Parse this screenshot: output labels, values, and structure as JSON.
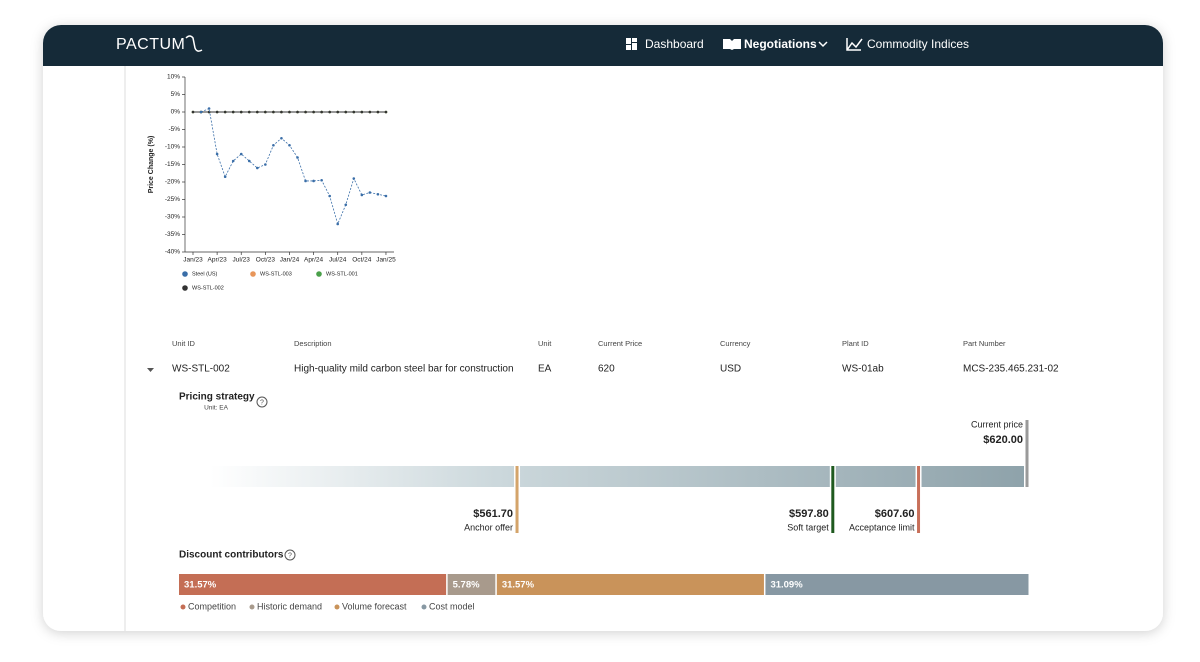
{
  "nav": {
    "logo": "PACTUM",
    "items": [
      "Dashboard",
      "Negotiations",
      "Commodity Indices"
    ]
  },
  "chart_data": {
    "type": "line",
    "y_label": "Price Change (%)",
    "categories": [
      "Jan/23",
      null,
      null,
      "Apr/23",
      null,
      null,
      "Jul/23",
      null,
      null,
      "Oct/23",
      null,
      null,
      "Jan/24",
      null,
      null,
      "Apr/24",
      null,
      null,
      "Jul/24",
      null,
      null,
      "Oct/24",
      null,
      null,
      "Jan/25"
    ],
    "ylim": [
      -40,
      10
    ],
    "yticks": [
      {
        "value": 10,
        "label": "10%"
      },
      {
        "value": 5,
        "label": "5%"
      },
      {
        "value": 0,
        "label": "0%"
      },
      {
        "value": -5,
        "label": "-5%"
      },
      {
        "value": -10,
        "label": "-10%"
      },
      {
        "value": -15,
        "label": "-15%"
      },
      {
        "value": -20,
        "label": "-20%"
      },
      {
        "value": -25,
        "label": "-25%"
      },
      {
        "value": -30,
        "label": "-30%"
      },
      {
        "value": -35,
        "label": "-35%"
      },
      {
        "value": -40,
        "label": "-40%"
      }
    ],
    "series": [
      {
        "name": "Steel (US)",
        "color": "#3a6ea8",
        "dashed": true,
        "values": [
          null,
          0,
          1,
          -12,
          -18.5,
          -14,
          -12,
          -14,
          -16,
          -15,
          -9.5,
          -7.5,
          -9.5,
          -13,
          -19.7,
          -19.7,
          -19.5,
          -24,
          -32,
          -26.5,
          -19,
          -23.7,
          -23,
          -23.5,
          -24
        ]
      },
      {
        "name": "WS-STL-003",
        "color": "#e8965a",
        "values": [
          0,
          0,
          0,
          0,
          0,
          0,
          0,
          0,
          0,
          0,
          0,
          0,
          0,
          0,
          0,
          0,
          0,
          0,
          0,
          0,
          0,
          0,
          0,
          0,
          0
        ]
      },
      {
        "name": "WS-STL-001",
        "color": "#4aa04a",
        "values": [
          0,
          0,
          0,
          0,
          0,
          0,
          0,
          0,
          0,
          0,
          0,
          0,
          0,
          0,
          0,
          0,
          0,
          0,
          0,
          0,
          0,
          0,
          0,
          0,
          0
        ]
      },
      {
        "name": "WS-STL-002",
        "color": "#333333",
        "values": [
          0,
          0,
          0,
          0,
          0,
          0,
          0,
          0,
          0,
          0,
          0,
          0,
          0,
          0,
          0,
          0,
          0,
          0,
          0,
          0,
          0,
          0,
          0,
          0,
          0
        ]
      }
    ]
  },
  "table": {
    "headers": [
      "Unit ID",
      "Description",
      "Unit",
      "Current Price",
      "Currency",
      "Plant ID",
      "Part Number"
    ],
    "rows": [
      [
        "WS-STL-002",
        "High-quality mild carbon steel bar for construction",
        "EA",
        "620",
        "USD",
        "WS-01ab",
        "MCS-235.465.231-02"
      ]
    ]
  },
  "pricing_strategy": {
    "title": "Pricing strategy",
    "subtitle": "Unit: EA",
    "xlim": [
      526.6,
      620
    ],
    "markers": [
      {
        "name": "Anchor offer",
        "value": 561.7,
        "label": "$561.70",
        "color": "#d4a46a"
      },
      {
        "name": "Soft target",
        "value": 597.8,
        "label": "$597.80",
        "color": "#1f5a1f"
      },
      {
        "name": "Acceptance limit",
        "value": 607.6,
        "label": "$607.60",
        "color": "#c8705a"
      },
      {
        "name": "Current price",
        "value": 620,
        "label": "$620.00",
        "color": "#9a9a9a"
      }
    ]
  },
  "discount_contributors": {
    "title": "Discount contributors",
    "segments": [
      {
        "name": "Competition",
        "value": 31.57,
        "label": "31.57%",
        "color": "#c46e55"
      },
      {
        "name": "Historic demand",
        "value": 5.78,
        "label": "5.78%",
        "color": "#a89a8c"
      },
      {
        "name": "Volume forecast",
        "value": 31.57,
        "label": "31.57%",
        "color": "#c9935a"
      },
      {
        "name": "Cost model",
        "value": 31.09,
        "label": "31.09%",
        "color": "#8798a3"
      }
    ]
  }
}
